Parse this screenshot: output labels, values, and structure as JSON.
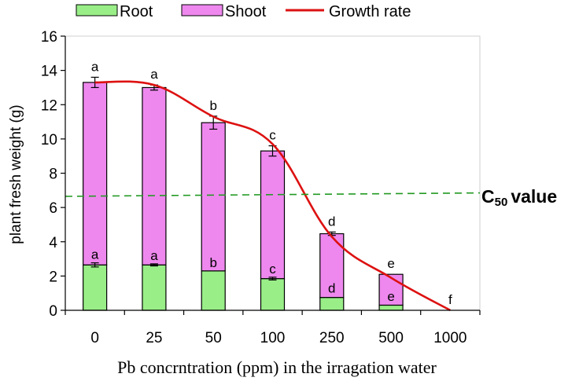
{
  "chart_data": {
    "type": "bar",
    "stacked": true,
    "categories": [
      "0",
      "25",
      "50",
      "100",
      "250",
      "500",
      "1000"
    ],
    "series": [
      {
        "name": "Root",
        "color": "#99ee88",
        "values": [
          2.65,
          2.65,
          2.3,
          1.85,
          0.75,
          0.3,
          0
        ],
        "errors": [
          0.12,
          0.06,
          0,
          0.08,
          0,
          0,
          0
        ]
      },
      {
        "name": "Shoot",
        "color": "#ee88ee",
        "values": [
          10.65,
          10.35,
          8.65,
          7.45,
          3.72,
          1.8,
          0
        ]
      }
    ],
    "totals": [
      13.3,
      13.0,
      10.95,
      9.3,
      4.47,
      2.1,
      0
    ],
    "total_errors": [
      0.3,
      0.15,
      0.38,
      0.3,
      0.1,
      0,
      0
    ],
    "line_series": {
      "name": "Growth rate",
      "color": "#dd1111",
      "values": [
        13.3,
        13.15,
        11.3,
        9.7,
        4.3,
        1.9,
        0
      ]
    },
    "letters_top": [
      "a",
      "a",
      "b",
      "c",
      "d",
      "e",
      "f"
    ],
    "letters_root": [
      "a",
      "a",
      "b",
      "c",
      "d",
      "e",
      ""
    ],
    "threshold": {
      "label_main": "C",
      "label_sub": "50",
      "label_word": "value",
      "y_start": 6.65,
      "y_end": 6.85,
      "color": "#229922"
    },
    "xlabel": "Pb concrntration (ppm) in the irragation water",
    "ylabel": "plant fresh weight (g)",
    "ylim": [
      0,
      16
    ],
    "yticks": [
      "0",
      "2",
      "4",
      "6",
      "8",
      "10",
      "12",
      "14",
      "16"
    ],
    "legend": {
      "position": "top",
      "entries": [
        "Root",
        "Shoot",
        "Growth rate"
      ]
    }
  }
}
